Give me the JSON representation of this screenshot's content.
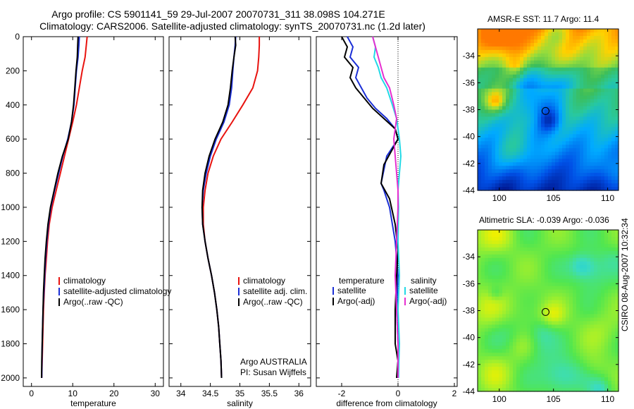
{
  "title_line1": "Argo profile: CS 5901141_59 29-Jul-2007 20070731_311 38.098S 104.271E",
  "title_line2": "Climatology: CARS2006. Satellite-adjusted climatology: synTS_20070731.nc (1.2d later)",
  "credit": "CSIRO 08-Aug-2007 10:32:34",
  "colors": {
    "climatology": "#e8130f",
    "satellite": "#1b2fd6",
    "argo": "#000000",
    "salinity_satellite": "#22d9e6",
    "salinity_argo": "#e62ed0"
  },
  "chart_data": [
    {
      "type": "line",
      "xlabel": "temperature",
      "ylabel": "",
      "xlim": [
        -2,
        32
      ],
      "ylim": [
        2050,
        0
      ],
      "xticks": [
        0,
        10,
        20,
        30
      ],
      "yticks": [
        0,
        200,
        400,
        600,
        800,
        1000,
        1200,
        1400,
        1600,
        1800,
        2000
      ],
      "legend": [
        "climatology",
        "satellite-adjusted climatology",
        "Argo(..raw -QC)"
      ],
      "series": [
        {
          "name": "climatology",
          "color": "climatology",
          "x": [
            13.5,
            13.3,
            13.0,
            12.3,
            11.6,
            10.9,
            10.0,
            9.0,
            8.0,
            7.0,
            6.0,
            5.0,
            4.3,
            3.9,
            3.6,
            3.3,
            3.1,
            2.9,
            2.8,
            2.7,
            2.6,
            2.5
          ],
          "y": [
            0,
            50,
            120,
            200,
            300,
            400,
            500,
            600,
            700,
            800,
            900,
            1000,
            1100,
            1200,
            1300,
            1400,
            1500,
            1600,
            1700,
            1800,
            1900,
            2000
          ]
        },
        {
          "name": "satellite-adjusted climatology",
          "color": "satellite",
          "x": [
            11.6,
            11.5,
            11.3,
            10.9,
            10.6,
            10.3,
            9.7,
            8.8,
            7.6,
            6.6,
            5.6,
            4.7,
            4.1,
            3.7,
            3.4,
            3.2,
            3.0,
            2.8,
            2.7,
            2.6,
            2.55,
            2.5
          ],
          "y": [
            0,
            50,
            120,
            200,
            300,
            400,
            500,
            600,
            700,
            800,
            900,
            1000,
            1100,
            1200,
            1300,
            1400,
            1500,
            1600,
            1700,
            1800,
            1900,
            2000
          ]
        },
        {
          "name": "Argo(..raw -QC)",
          "color": "argo",
          "x": [
            11.3,
            11.2,
            11.1,
            10.8,
            10.5,
            10.2,
            9.7,
            8.9,
            7.5,
            6.4,
            5.5,
            4.6,
            4.0,
            3.6,
            3.3,
            3.1,
            2.9,
            2.8,
            2.7,
            2.6,
            2.5,
            2.45
          ],
          "y": [
            0,
            50,
            120,
            200,
            300,
            400,
            500,
            600,
            700,
            800,
            900,
            1000,
            1100,
            1200,
            1300,
            1400,
            1500,
            1600,
            1700,
            1800,
            1900,
            2000
          ]
        }
      ]
    },
    {
      "type": "line",
      "xlabel": "salinity",
      "xlim": [
        33.8,
        36.2
      ],
      "ylim": [
        2050,
        0
      ],
      "xticks": [
        34,
        34.5,
        35,
        35.5,
        36
      ],
      "legend": [
        "climatology",
        "satellite adj. clim.",
        "Argo(..raw -QC)"
      ],
      "annotation": [
        "Argo AUSTRALIA",
        "PI: Susan Wijffels"
      ],
      "series": [
        {
          "name": "climatology",
          "color": "climatology",
          "x": [
            35.33,
            35.33,
            35.32,
            35.3,
            35.22,
            35.05,
            34.87,
            34.68,
            34.55,
            34.46,
            34.41,
            34.38,
            34.38,
            34.41,
            34.46,
            34.52,
            34.57,
            34.61,
            34.64,
            34.66,
            34.68,
            34.69
          ],
          "y": [
            0,
            50,
            120,
            200,
            300,
            400,
            500,
            600,
            700,
            800,
            900,
            1000,
            1100,
            1200,
            1300,
            1400,
            1500,
            1600,
            1700,
            1800,
            1900,
            2000
          ]
        },
        {
          "name": "satellite adj. clim.",
          "color": "satellite",
          "x": [
            34.93,
            34.92,
            34.9,
            34.88,
            34.86,
            34.82,
            34.73,
            34.6,
            34.5,
            34.43,
            34.38,
            34.36,
            34.37,
            34.41,
            34.46,
            34.52,
            34.57,
            34.61,
            34.64,
            34.66,
            34.68,
            34.69
          ],
          "y": [
            0,
            50,
            120,
            200,
            300,
            400,
            500,
            600,
            700,
            800,
            900,
            1000,
            1100,
            1200,
            1300,
            1400,
            1500,
            1600,
            1700,
            1800,
            1900,
            2000
          ]
        },
        {
          "name": "Argo(..raw -QC)",
          "color": "argo",
          "x": [
            34.92,
            34.93,
            34.9,
            34.87,
            34.84,
            34.8,
            34.71,
            34.58,
            34.48,
            34.41,
            34.37,
            34.36,
            34.37,
            34.41,
            34.46,
            34.52,
            34.57,
            34.61,
            34.64,
            34.66,
            34.68,
            34.69
          ],
          "y": [
            0,
            50,
            120,
            200,
            300,
            400,
            500,
            600,
            700,
            800,
            900,
            1000,
            1100,
            1200,
            1300,
            1400,
            1500,
            1600,
            1700,
            1800,
            1900,
            2000
          ]
        }
      ]
    },
    {
      "type": "line",
      "xlabel": "difference from climatology",
      "xlim": [
        -2.9,
        2.1
      ],
      "ylim": [
        2050,
        0
      ],
      "xticks": [
        -2,
        0,
        2
      ],
      "zero_line": 0,
      "legend_groups": [
        {
          "header": "temperature",
          "items": [
            "satellite",
            "Argo(-adj)"
          ]
        },
        {
          "header": "salinity",
          "items": [
            "satellite",
            "Argo(-adj)"
          ]
        }
      ],
      "series": [
        {
          "name": "temperature satellite",
          "color": "satellite",
          "x": [
            -1.8,
            -1.6,
            -1.7,
            -1.4,
            -1.5,
            -1.3,
            -1.1,
            -0.8,
            -0.4,
            -0.1,
            0.0,
            -0.4,
            -0.6,
            -0.5,
            -0.3,
            -0.1,
            0.0,
            -0.05,
            0.0,
            0.0,
            -0.03
          ],
          "y": [
            0,
            60,
            120,
            180,
            240,
            300,
            360,
            420,
            480,
            540,
            600,
            700,
            860,
            900,
            1000,
            1200,
            1400,
            1600,
            1800,
            1900,
            2000
          ]
        },
        {
          "name": "temperature Argo(-adj)",
          "color": "argo",
          "x": [
            -2.0,
            -1.8,
            -1.9,
            -1.6,
            -1.7,
            -1.5,
            -1.2,
            -0.9,
            -0.5,
            -0.1,
            0.0,
            -0.5,
            -0.6,
            -0.3,
            -0.1,
            0.0,
            -0.05,
            -0.1,
            -0.1,
            0.0,
            -0.05
          ],
          "y": [
            0,
            60,
            120,
            180,
            240,
            300,
            360,
            420,
            480,
            540,
            600,
            750,
            860,
            950,
            1100,
            1250,
            1400,
            1600,
            1800,
            1900,
            2000
          ]
        },
        {
          "name": "salinity satellite",
          "color": "salinity_satellite",
          "x": [
            -0.9,
            -0.8,
            -0.85,
            -0.7,
            -0.6,
            -0.4,
            -0.2,
            -0.05,
            0.0,
            0.05,
            0.1,
            0.05,
            0.0,
            0.02,
            0.0,
            0.05,
            0.0,
            0.05,
            0.03,
            0.02
          ],
          "y": [
            0,
            60,
            120,
            180,
            240,
            300,
            400,
            480,
            540,
            600,
            700,
            800,
            900,
            1000,
            1200,
            1400,
            1600,
            1800,
            1900,
            2000
          ]
        },
        {
          "name": "salinity Argo(-adj)",
          "color": "salinity_argo",
          "x": [
            -0.9,
            -0.8,
            -0.7,
            -0.6,
            -0.5,
            -0.3,
            -0.15,
            -0.05,
            -0.1,
            -0.15,
            -0.1,
            -0.05,
            0.0,
            0.0,
            -0.05,
            -0.1,
            -0.05,
            0.0,
            0.0,
            0.0
          ],
          "y": [
            0,
            60,
            120,
            180,
            240,
            300,
            400,
            480,
            540,
            600,
            700,
            800,
            900,
            1000,
            1200,
            1400,
            1600,
            1800,
            1900,
            2000
          ]
        }
      ]
    },
    {
      "type": "heatmap",
      "title": "AMSR-E SST: 11.7 Argo: 11.4",
      "xlim": [
        98,
        111
      ],
      "ylim": [
        -44,
        -32
      ],
      "xticks": [
        100,
        105,
        110
      ],
      "yticks": [
        -34,
        -36,
        -38,
        -40,
        -42,
        -44
      ],
      "marker": [
        104.27,
        -38.1
      ]
    },
    {
      "type": "heatmap",
      "title": "Altimetric SLA: -0.039 Argo: -0.036",
      "xlim": [
        98,
        111
      ],
      "ylim": [
        -44,
        -32
      ],
      "xticks": [
        100,
        105,
        110
      ],
      "yticks": [
        -34,
        -36,
        -38,
        -40,
        -42,
        -44
      ],
      "marker": [
        104.27,
        -38.1
      ]
    }
  ]
}
